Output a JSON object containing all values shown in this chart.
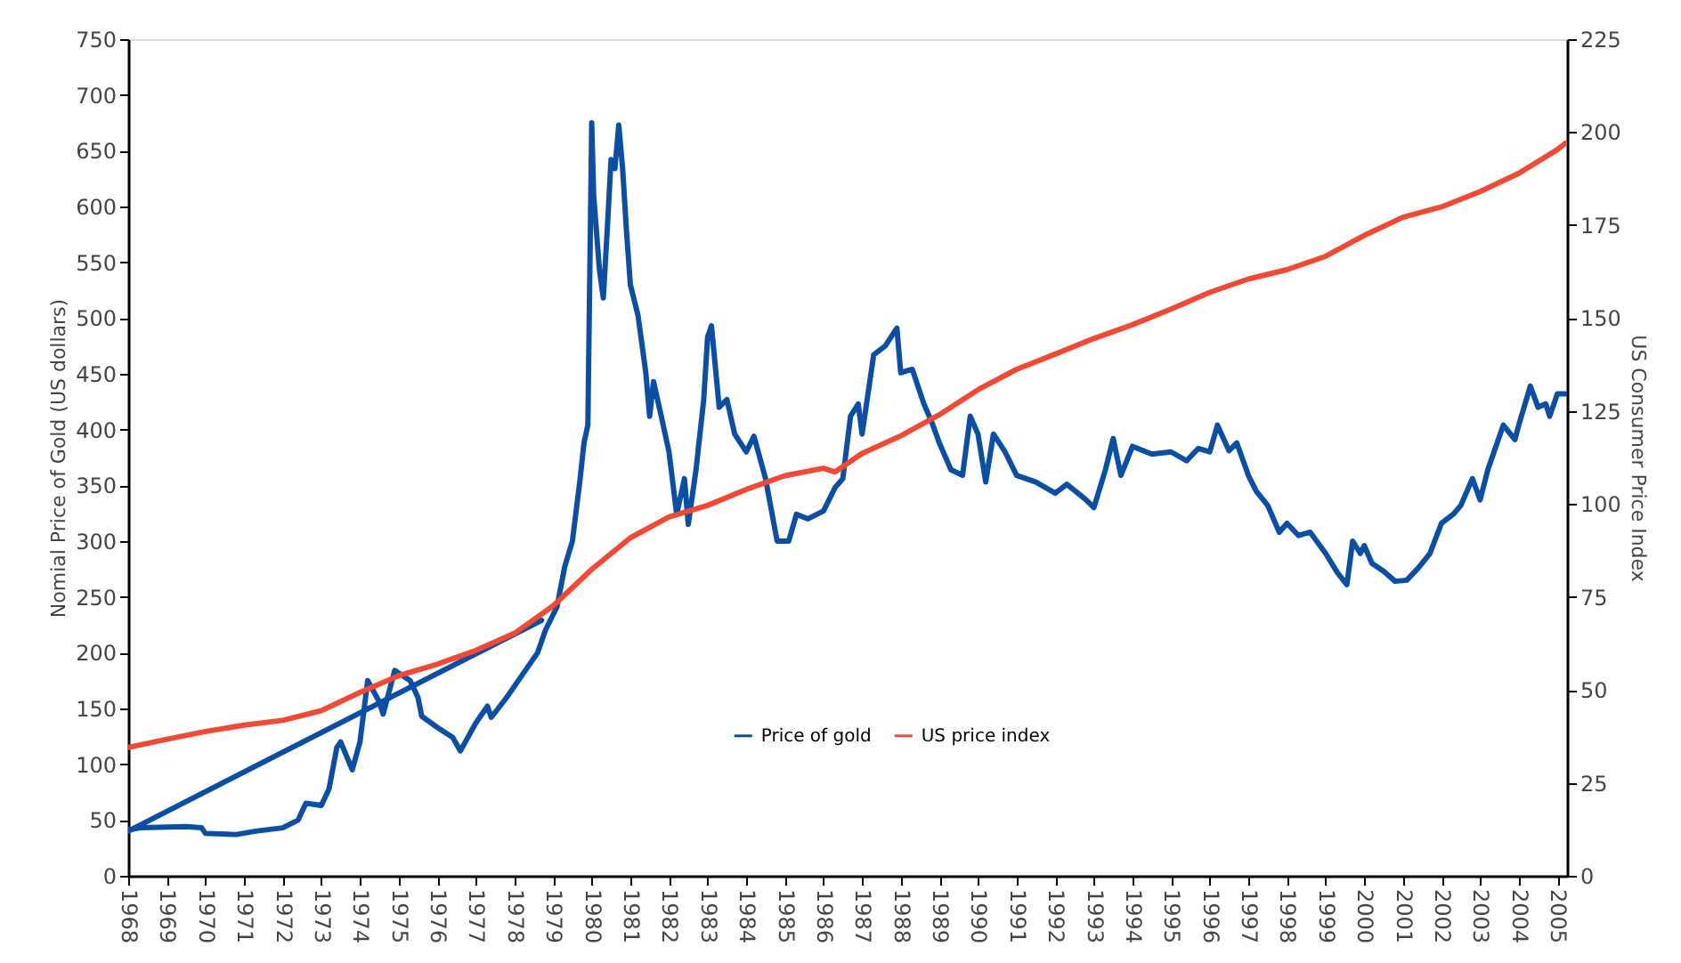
{
  "chart_data": {
    "type": "line",
    "xlabel": null,
    "ylabel": "Nomial Price of Gold (US dollars)",
    "y2label": "US Consumer Price Index",
    "xlim": [
      1968,
      2005.25
    ],
    "xticks": [
      1968,
      1969,
      1970,
      1971,
      1972,
      1973,
      1974,
      1975,
      1976,
      1977,
      1978,
      1979,
      1980,
      1981,
      1982,
      1983,
      1984,
      1985,
      1986,
      1987,
      1988,
      1989,
      1990,
      1991,
      1992,
      1993,
      1994,
      1995,
      1996,
      1997,
      1998,
      1999,
      2000,
      2001,
      2002,
      2003,
      2004,
      2005
    ],
    "ylim": [
      0,
      750
    ],
    "yticks": [
      0,
      50,
      100,
      150,
      200,
      250,
      300,
      350,
      400,
      450,
      500,
      550,
      600,
      650,
      700,
      750
    ],
    "y2lim": [
      0,
      225
    ],
    "y2ticks": [
      0,
      25,
      50,
      75,
      100,
      125,
      150,
      175,
      200,
      225
    ],
    "grid": false,
    "legend": "bottom",
    "line_style": "solid",
    "series": [
      {
        "name": "Price of gold",
        "color": "#0b4ea2",
        "axis": "y",
        "x": [
          1968.0,
          1968.3,
          1969.5,
          1969.9,
          1970.0,
          1970.8,
          1971.3,
          1972.0,
          1972.4,
          1972.6,
          1973.0,
          1973.2,
          1973.4,
          1973.5,
          1973.8,
          1974.0,
          1974.2,
          1974.5,
          1974.6,
          1974.9,
          1975.3,
          1975.5,
          1975.6,
          1976.0,
          1976.4,
          1976.6,
          1977.0,
          1977.3,
          1977.4,
          1977.8,
          1978.1,
          1978.3,
          1978.6,
          1978.8,
          1979.1,
          1979.3,
          1979.5,
          1979.7,
          1979.8,
          1979.9,
          1980.0,
          1980.05,
          1980.2,
          1980.3,
          1980.4,
          1980.5,
          1980.6,
          1980.7,
          1980.8,
          1980.9,
          1981.0,
          1981.2,
          1981.4,
          1981.5,
          1981.6,
          1981.8,
          1982.0,
          1982.2,
          1982.4,
          1982.5,
          1982.7,
          1982.9,
          1983.0,
          1983.1,
          1983.3,
          1983.5,
          1983.7,
          1984.0,
          1984.2,
          1984.5,
          1984.8,
          1985.1,
          1985.3,
          1985.6,
          1986.0,
          1986.3,
          1986.5,
          1986.7,
          1986.9,
          1987.0,
          1987.3,
          1987.6,
          1987.9,
          1988.0,
          1988.3,
          1988.6,
          1988.8,
          1989.0,
          1989.3,
          1989.6,
          1989.8,
          1990.0,
          1990.2,
          1990.4,
          1990.7,
          1991.0,
          1991.5,
          1992.0,
          1992.3,
          1992.8,
          1993.0,
          1993.3,
          1993.5,
          1993.7,
          1994.0,
          1994.5,
          1995.0,
          1995.4,
          1995.7,
          1996.0,
          1996.2,
          1996.5,
          1996.7,
          1997.0,
          1997.2,
          1997.5,
          1997.8,
          1998.0,
          1998.3,
          1998.6,
          1999.0,
          1999.3,
          1999.55,
          1999.7,
          1999.9,
          2000.0,
          2000.2,
          2000.5,
          2000.8,
          2001.1,
          2001.4,
          2001.7,
          2002.0,
          2002.3,
          2002.5,
          2002.8,
          2003.0,
          2003.2,
          2003.6,
          2003.9,
          2004.0,
          2004.3,
          2004.5,
          2004.7,
          2004.8,
          2005.0,
          2005.2
        ],
        "values": [
          41,
          43,
          44,
          43,
          38,
          37,
          40,
          43,
          50,
          65,
          63,
          78,
          115,
          120,
          95,
          120,
          175,
          156,
          145,
          184,
          175,
          160,
          143,
          133,
          124,
          112,
          137,
          152,
          142,
          160,
          175,
          185,
          200,
          220,
          241,
          277,
          300,
          356,
          388,
          404,
          675,
          610,
          543,
          518,
          578,
          642,
          634,
          673,
          634,
          578,
          530,
          502,
          451,
          412,
          443,
          412,
          380,
          324,
          356,
          315,
          364,
          427,
          483,
          493,
          420,
          427,
          396,
          380,
          394,
          356,
          300,
          300,
          324,
          320,
          327,
          348,
          356,
          412,
          423,
          396,
          467,
          475,
          491,
          451,
          454,
          423,
          407,
          388,
          364,
          359,
          412,
          396,
          353,
          396,
          380,
          359,
          353,
          343,
          351,
          337,
          330,
          364,
          392,
          359,
          385,
          378,
          380,
          372,
          383,
          380,
          404,
          381,
          388,
          359,
          345,
          332,
          308,
          316,
          305,
          308,
          289,
          272,
          261,
          300,
          289,
          296,
          280,
          273,
          264,
          265,
          276,
          289,
          316,
          324,
          332,
          356,
          337,
          364,
          404,
          391,
          404,
          439,
          420,
          423,
          412,
          432,
          432
        ]
      },
      {
        "name": "US price index",
        "color": "#f04a36",
        "axis": "y2",
        "x": [
          1968,
          1969,
          1970,
          1971,
          1972,
          1973,
          1974,
          1975,
          1976,
          1977,
          1978,
          1979,
          1980,
          1981,
          1982,
          1983,
          1984,
          1985,
          1986,
          1986.3,
          1987,
          1988,
          1989,
          1990,
          1991,
          1992,
          1993,
          1994,
          1995,
          1996,
          1997,
          1998,
          1999,
          2000,
          2001,
          2002,
          2003,
          2004,
          2005,
          2005.2
        ],
        "values": [
          34.5,
          36.7,
          38.8,
          40.5,
          41.8,
          44.4,
          49.3,
          53.8,
          56.9,
          60.6,
          65.2,
          72.6,
          82.4,
          90.9,
          96.5,
          99.6,
          103.9,
          107.6,
          109.6,
          108.6,
          113.6,
          118.3,
          124.0,
          130.7,
          136.2,
          140.3,
          144.5,
          148.2,
          152.4,
          156.9,
          160.5,
          163.0,
          166.6,
          172.2,
          177.1,
          179.9,
          184.0,
          188.9,
          195.3,
          197.0
        ]
      },
      {
        "type": "line",
        "color": "#0b4ea2",
        "axis": "y",
        "x": [
          1968,
          1978.7
        ],
        "values": [
          40,
          229
        ]
      }
    ]
  }
}
